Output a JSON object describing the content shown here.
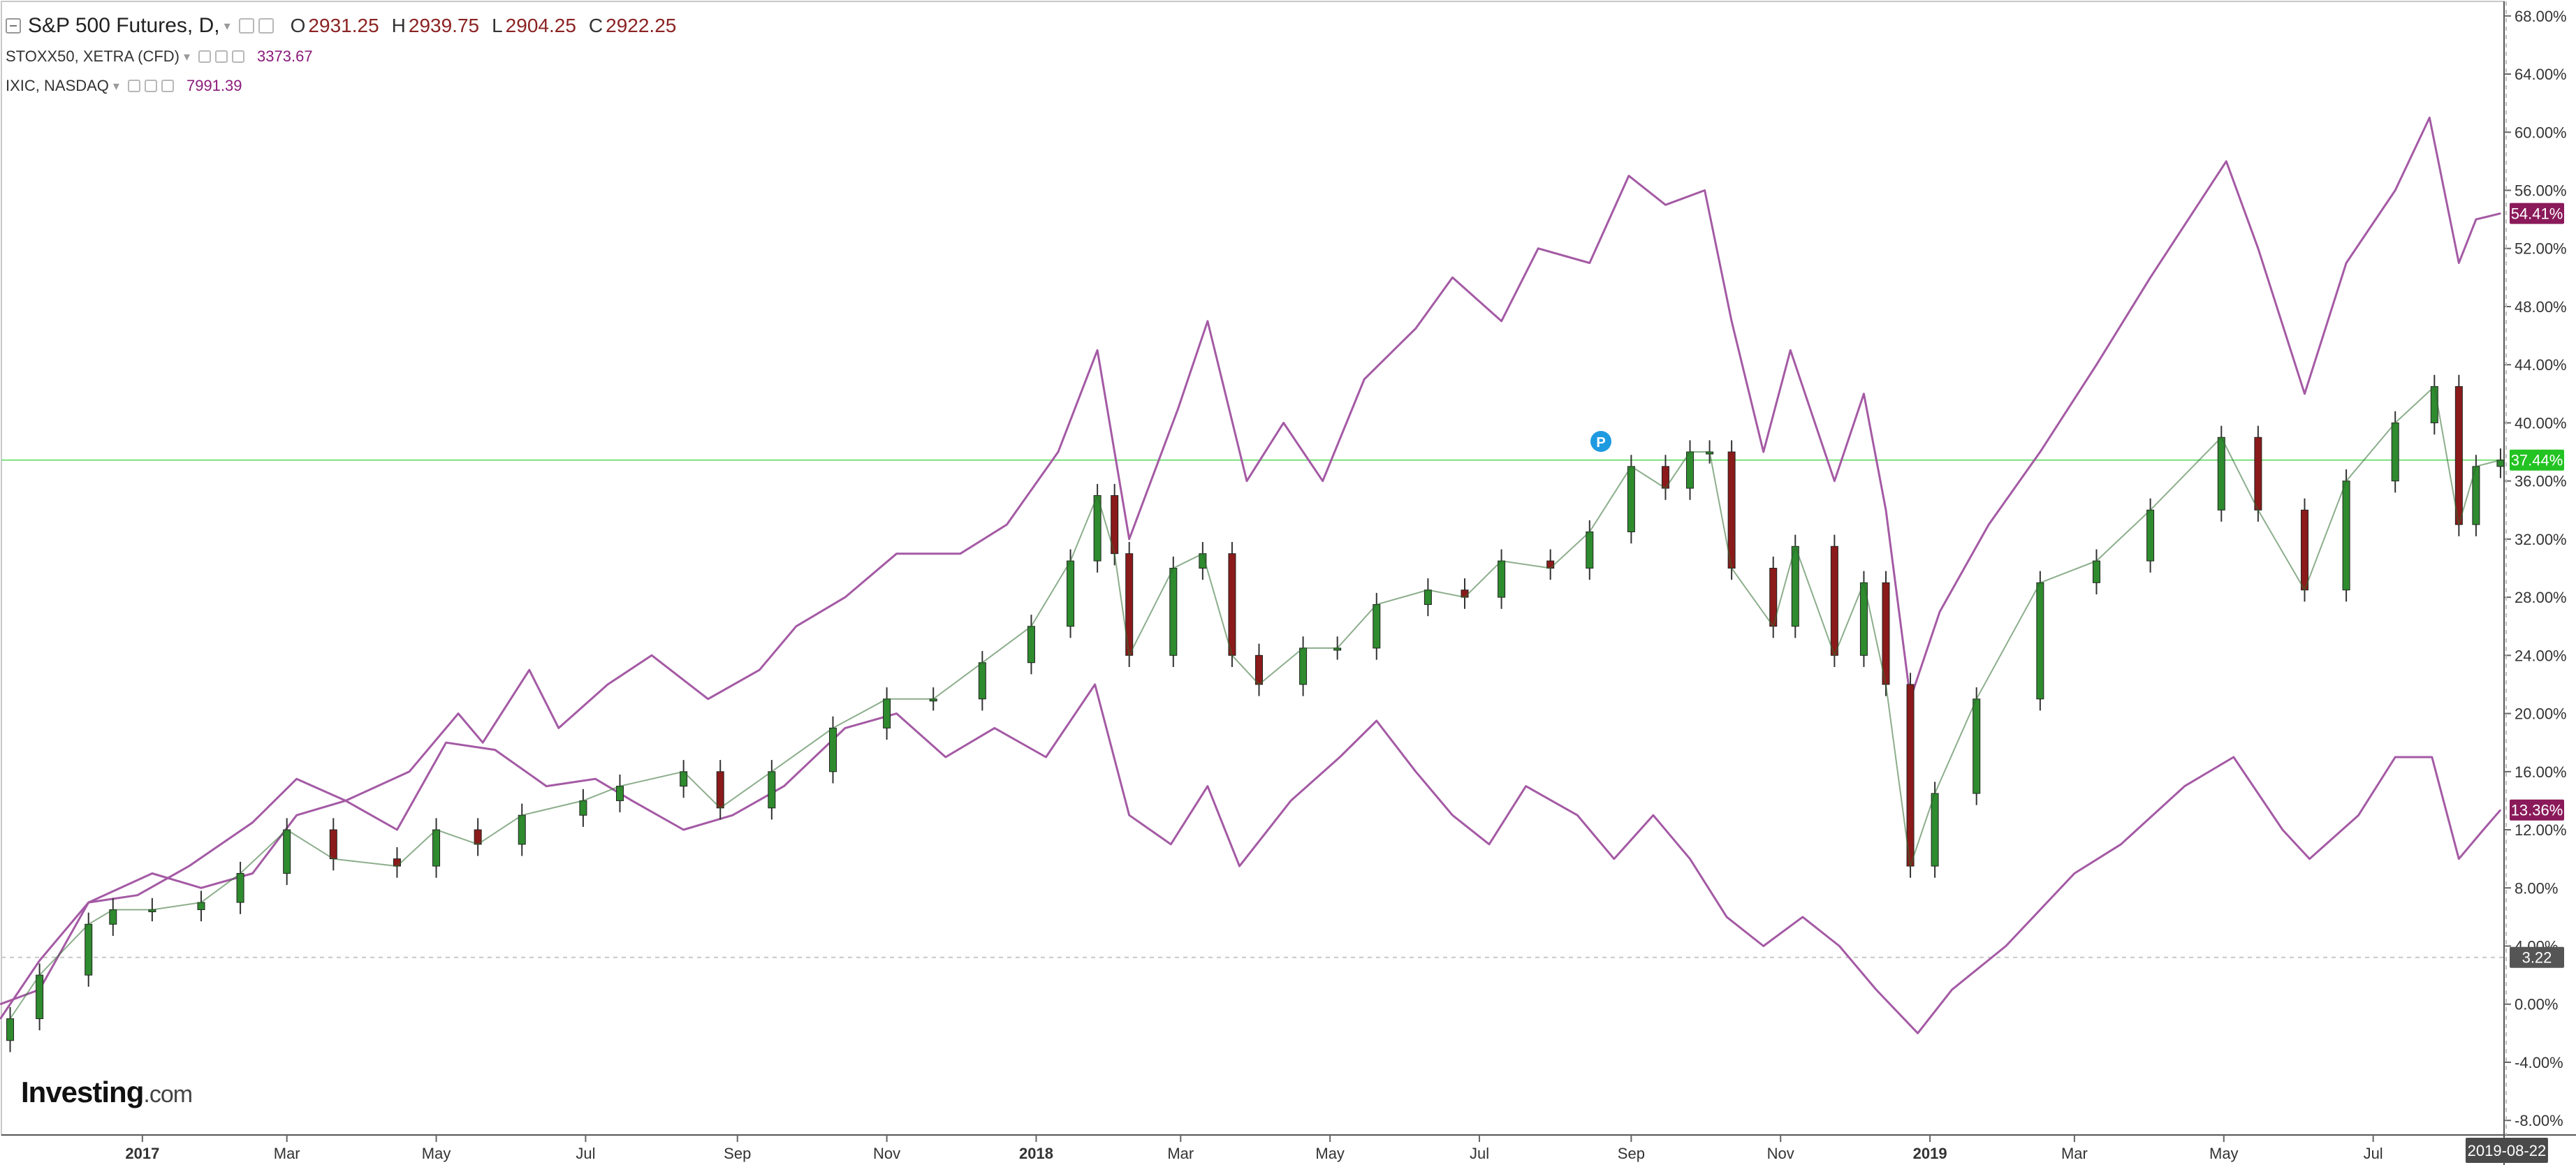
{
  "header": {
    "main_title": "S&P 500 Futures, D,",
    "ohlc": [
      {
        "key": "O",
        "value": "2931.25"
      },
      {
        "key": "H",
        "value": "2939.75"
      },
      {
        "key": "L",
        "value": "2904.25"
      },
      {
        "key": "C",
        "value": "2922.25"
      }
    ],
    "compare": [
      {
        "name": "STOXX50, XETRA (CFD)",
        "value": "3373.67",
        "color": "#8a1a7a"
      },
      {
        "name": "IXIC, NASDAQ",
        "value": "7991.39",
        "color": "#8a1a7a"
      }
    ]
  },
  "watermark": {
    "brand": "Investing",
    "domain": ".com"
  },
  "chart_data": {
    "type": "line",
    "title": "",
    "xlabel": "",
    "ylabel": "",
    "x_ticks": [
      "2017",
      "Mar",
      "May",
      "Jul",
      "Sep",
      "Nov",
      "2018",
      "Mar",
      "May",
      "Jul",
      "Sep",
      "Nov",
      "2019",
      "Mar",
      "May",
      "Jul"
    ],
    "y_ticks": [
      "68.00%",
      "64.00%",
      "60.00%",
      "56.00%",
      "52.00%",
      "48.00%",
      "44.00%",
      "40.00%",
      "36.00%",
      "32.00%",
      "28.00%",
      "24.00%",
      "20.00%",
      "16.00%",
      "12.00%",
      "8.00%",
      "4.00%",
      "0.00%",
      "-4.00%",
      "-8.00%"
    ],
    "ylim": [
      -9,
      69
    ],
    "x_range": [
      "2016-11-01",
      "2019-09-01"
    ],
    "current_date_label": "2019-08-22",
    "price_labels": [
      {
        "text": "54.41%",
        "value": 54.41,
        "color": "#8a1a5a"
      },
      {
        "text": "37.44%",
        "value": 37.44,
        "color": "#22c322"
      },
      {
        "text": "13.36%",
        "value": 13.36,
        "color": "#8a1a5a"
      },
      {
        "text": "3.22",
        "value": 3.22,
        "color": "#555555"
      }
    ],
    "series": [
      {
        "name": "S&P 500 Futures",
        "style": "candlestick",
        "up_color": "#2e8b2e",
        "down_color": "#8b1a1a",
        "points": [
          [
            "2016-11-08",
            -1
          ],
          [
            "2016-11-20",
            2
          ],
          [
            "2016-12-10",
            5.5
          ],
          [
            "2016-12-20",
            6.5
          ],
          [
            "2017-01-05",
            6.5
          ],
          [
            "2017-01-25",
            7
          ],
          [
            "2017-02-10",
            9
          ],
          [
            "2017-03-01",
            12
          ],
          [
            "2017-03-20",
            10
          ],
          [
            "2017-04-15",
            9.5
          ],
          [
            "2017-05-01",
            12
          ],
          [
            "2017-05-18",
            11
          ],
          [
            "2017-06-05",
            13
          ],
          [
            "2017-06-30",
            14
          ],
          [
            "2017-07-15",
            15
          ],
          [
            "2017-08-10",
            16
          ],
          [
            "2017-08-25",
            13.5
          ],
          [
            "2017-09-15",
            16
          ],
          [
            "2017-10-10",
            19
          ],
          [
            "2017-11-01",
            21
          ],
          [
            "2017-11-20",
            21
          ],
          [
            "2017-12-10",
            23.5
          ],
          [
            "2017-12-30",
            26
          ],
          [
            "2018-01-15",
            30.5
          ],
          [
            "2018-01-26",
            35
          ],
          [
            "2018-02-02",
            31
          ],
          [
            "2018-02-08",
            24
          ],
          [
            "2018-02-26",
            30
          ],
          [
            "2018-03-10",
            31
          ],
          [
            "2018-03-22",
            24
          ],
          [
            "2018-04-02",
            22
          ],
          [
            "2018-04-20",
            24.5
          ],
          [
            "2018-05-04",
            24.5
          ],
          [
            "2018-05-20",
            27.5
          ],
          [
            "2018-06-10",
            28.5
          ],
          [
            "2018-06-25",
            28
          ],
          [
            "2018-07-10",
            30.5
          ],
          [
            "2018-07-30",
            30
          ],
          [
            "2018-08-15",
            32.5
          ],
          [
            "2018-09-01",
            37
          ],
          [
            "2018-09-15",
            35.5
          ],
          [
            "2018-09-25",
            38
          ],
          [
            "2018-10-03",
            38
          ],
          [
            "2018-10-12",
            30
          ],
          [
            "2018-10-29",
            26
          ],
          [
            "2018-11-07",
            31.5
          ],
          [
            "2018-11-23",
            24
          ],
          [
            "2018-12-05",
            29
          ],
          [
            "2018-12-14",
            22
          ],
          [
            "2018-12-24",
            9.5
          ],
          [
            "2019-01-03",
            14.5
          ],
          [
            "2019-01-20",
            21
          ],
          [
            "2019-02-15",
            29
          ],
          [
            "2019-03-10",
            30.5
          ],
          [
            "2019-04-01",
            34
          ],
          [
            "2019-04-30",
            39
          ],
          [
            "2019-05-15",
            34
          ],
          [
            "2019-06-03",
            28.5
          ],
          [
            "2019-06-20",
            36
          ],
          [
            "2019-07-10",
            40
          ],
          [
            "2019-07-26",
            42.5
          ],
          [
            "2019-08-05",
            33
          ],
          [
            "2019-08-12",
            37
          ],
          [
            "2019-08-22",
            37.44
          ]
        ]
      },
      {
        "name": "IXIC, NASDAQ",
        "style": "line",
        "color": "#a45aa4",
        "points": [
          [
            "2016-11-04",
            -1
          ],
          [
            "2016-11-20",
            3
          ],
          [
            "2016-12-10",
            7
          ],
          [
            "2016-12-30",
            7.5
          ],
          [
            "2017-01-20",
            9.5
          ],
          [
            "2017-02-15",
            12.5
          ],
          [
            "2017-03-05",
            15.5
          ],
          [
            "2017-03-25",
            14
          ],
          [
            "2017-04-20",
            16
          ],
          [
            "2017-05-10",
            20
          ],
          [
            "2017-05-20",
            18
          ],
          [
            "2017-06-08",
            23
          ],
          [
            "2017-06-20",
            19
          ],
          [
            "2017-07-10",
            22
          ],
          [
            "2017-07-28",
            24
          ],
          [
            "2017-08-20",
            21
          ],
          [
            "2017-09-10",
            23
          ],
          [
            "2017-09-25",
            26
          ],
          [
            "2017-10-15",
            28
          ],
          [
            "2017-11-05",
            31
          ],
          [
            "2017-12-01",
            31
          ],
          [
            "2017-12-20",
            33
          ],
          [
            "2018-01-10",
            38
          ],
          [
            "2018-01-26",
            45
          ],
          [
            "2018-02-08",
            32
          ],
          [
            "2018-02-28",
            41
          ],
          [
            "2018-03-12",
            47
          ],
          [
            "2018-03-28",
            36
          ],
          [
            "2018-04-12",
            40
          ],
          [
            "2018-04-28",
            36
          ],
          [
            "2018-05-15",
            43
          ],
          [
            "2018-06-05",
            46.5
          ],
          [
            "2018-06-20",
            50
          ],
          [
            "2018-07-10",
            47
          ],
          [
            "2018-07-25",
            52
          ],
          [
            "2018-08-15",
            51
          ],
          [
            "2018-08-31",
            57
          ],
          [
            "2018-09-15",
            55
          ],
          [
            "2018-10-01",
            56
          ],
          [
            "2018-10-12",
            47
          ],
          [
            "2018-10-25",
            38
          ],
          [
            "2018-11-05",
            45
          ],
          [
            "2018-11-23",
            36
          ],
          [
            "2018-12-05",
            42
          ],
          [
            "2018-12-14",
            34
          ],
          [
            "2018-12-24",
            21
          ],
          [
            "2019-01-05",
            27
          ],
          [
            "2019-01-25",
            33
          ],
          [
            "2019-02-15",
            38
          ],
          [
            "2019-03-10",
            44
          ],
          [
            "2019-04-01",
            50
          ],
          [
            "2019-05-02",
            58
          ],
          [
            "2019-05-15",
            52
          ],
          [
            "2019-06-03",
            42
          ],
          [
            "2019-06-20",
            51
          ],
          [
            "2019-07-10",
            56
          ],
          [
            "2019-07-24",
            61
          ],
          [
            "2019-08-05",
            51
          ],
          [
            "2019-08-12",
            54
          ],
          [
            "2019-08-22",
            54.41
          ]
        ]
      },
      {
        "name": "STOXX50, XETRA (CFD)",
        "style": "line",
        "color": "#a45aa4",
        "points": [
          [
            "2016-11-04",
            0
          ],
          [
            "2016-11-20",
            1
          ],
          [
            "2016-12-10",
            7
          ],
          [
            "2017-01-05",
            9
          ],
          [
            "2017-01-25",
            8
          ],
          [
            "2017-02-15",
            9
          ],
          [
            "2017-03-05",
            13
          ],
          [
            "2017-03-25",
            14
          ],
          [
            "2017-04-15",
            12
          ],
          [
            "2017-05-05",
            18
          ],
          [
            "2017-05-25",
            17.5
          ],
          [
            "2017-06-15",
            15
          ],
          [
            "2017-07-05",
            15.5
          ],
          [
            "2017-07-20",
            14
          ],
          [
            "2017-08-10",
            12
          ],
          [
            "2017-08-30",
            13
          ],
          [
            "2017-09-20",
            15
          ],
          [
            "2017-10-15",
            19
          ],
          [
            "2017-11-05",
            20
          ],
          [
            "2017-11-25",
            17
          ],
          [
            "2017-12-15",
            19
          ],
          [
            "2018-01-05",
            17
          ],
          [
            "2018-01-25",
            22
          ],
          [
            "2018-02-08",
            13
          ],
          [
            "2018-02-25",
            11
          ],
          [
            "2018-03-12",
            15
          ],
          [
            "2018-03-25",
            9.5
          ],
          [
            "2018-04-15",
            14
          ],
          [
            "2018-05-05",
            17
          ],
          [
            "2018-05-20",
            19.5
          ],
          [
            "2018-06-05",
            16
          ],
          [
            "2018-06-20",
            13
          ],
          [
            "2018-07-05",
            11
          ],
          [
            "2018-07-20",
            15
          ],
          [
            "2018-08-10",
            13
          ],
          [
            "2018-08-25",
            10
          ],
          [
            "2018-09-10",
            13
          ],
          [
            "2018-09-25",
            10
          ],
          [
            "2018-10-10",
            6
          ],
          [
            "2018-10-25",
            4
          ],
          [
            "2018-11-10",
            6
          ],
          [
            "2018-11-25",
            4
          ],
          [
            "2018-12-10",
            1
          ],
          [
            "2018-12-27",
            -2
          ],
          [
            "2019-01-10",
            1
          ],
          [
            "2019-02-01",
            4
          ],
          [
            "2019-03-01",
            9
          ],
          [
            "2019-03-20",
            11
          ],
          [
            "2019-04-15",
            15
          ],
          [
            "2019-05-05",
            17
          ],
          [
            "2019-05-25",
            12
          ],
          [
            "2019-06-05",
            10
          ],
          [
            "2019-06-25",
            13
          ],
          [
            "2019-07-10",
            17
          ],
          [
            "2019-07-25",
            17
          ],
          [
            "2019-08-05",
            10
          ],
          [
            "2019-08-15",
            12
          ],
          [
            "2019-08-22",
            13.36
          ]
        ]
      }
    ]
  }
}
